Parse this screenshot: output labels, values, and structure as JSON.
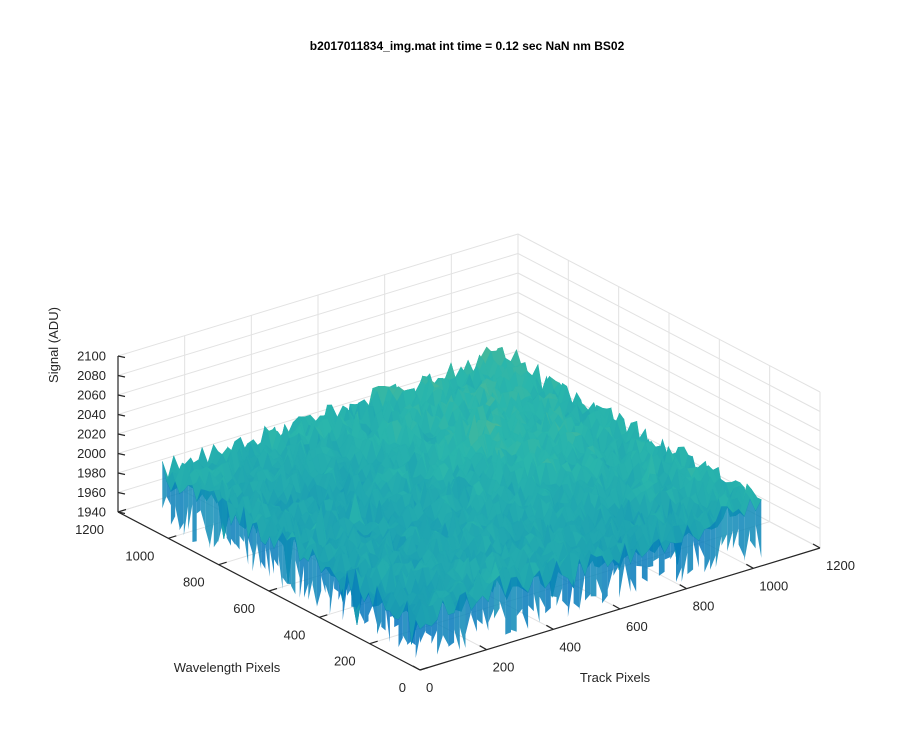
{
  "chart_data": {
    "type": "surface",
    "title": "b2017011834_img.mat int time = 0.12 sec  NaN nm BS02",
    "xlabel": "Track Pixels",
    "ylabel": "Wavelength Pixels",
    "zlabel": "Signal (ADU)",
    "xlim": [
      0,
      1200
    ],
    "ylim": [
      0,
      1200
    ],
    "zlim": [
      1940,
      2100
    ],
    "x_ticks": [
      "0",
      "200",
      "400",
      "600",
      "800",
      "1000",
      "1200"
    ],
    "y_ticks": [
      "0",
      "200",
      "400",
      "600",
      "800",
      "1000",
      "1200"
    ],
    "z_ticks": [
      "1940",
      "1960",
      "1980",
      "2000",
      "2020",
      "2040",
      "2060",
      "2080",
      "2100"
    ],
    "surface_extent": {
      "x": [
        0,
        1024
      ],
      "y": [
        0,
        1024
      ]
    },
    "surface_mean_z": 2000,
    "surface_noise_range": [
      1940,
      2090
    ],
    "grid": true,
    "colormap": "parula",
    "colors": {
      "low": "#0072BD",
      "mid": "#2AB6AC",
      "high": "#E1C33A"
    }
  }
}
